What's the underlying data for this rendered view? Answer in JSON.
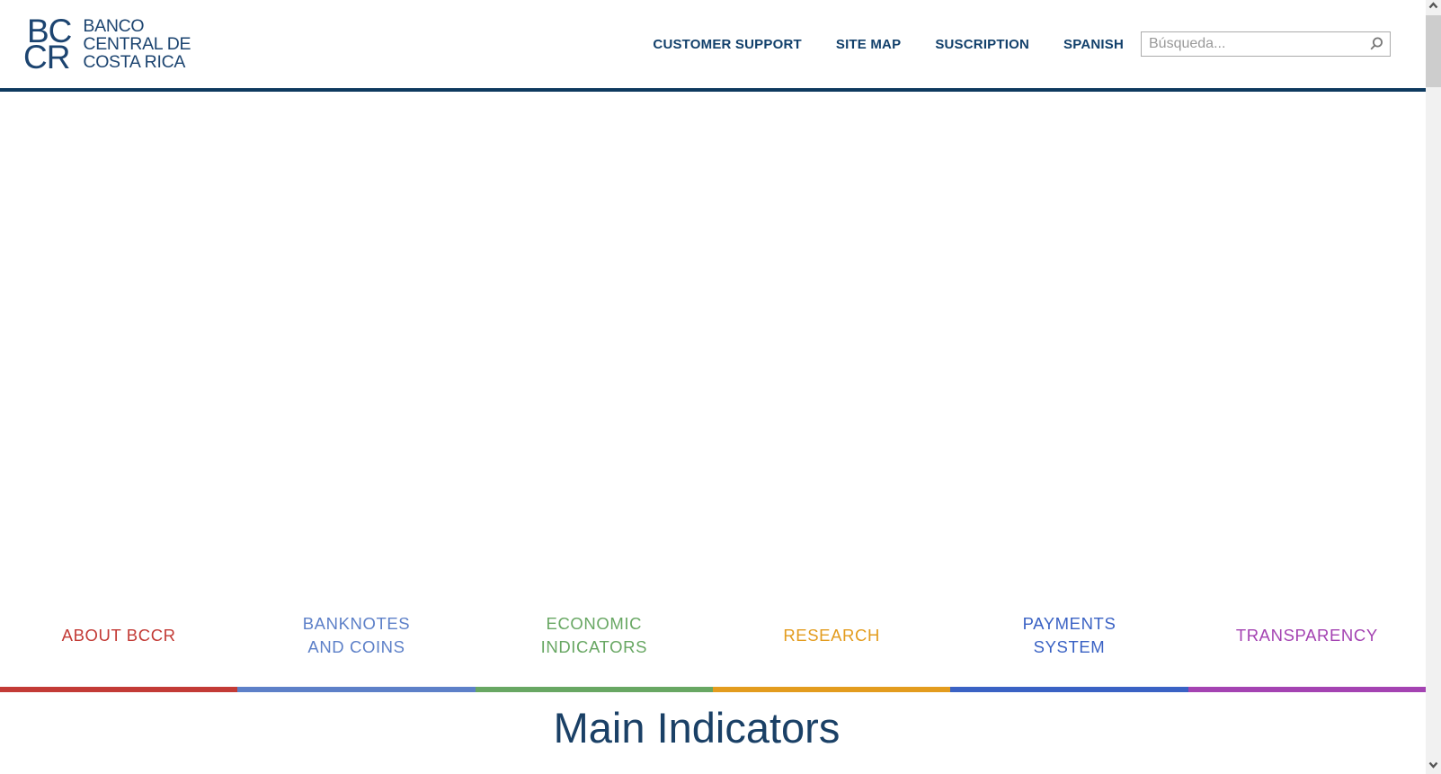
{
  "header": {
    "logo": {
      "mark_top": "BC",
      "mark_bottom": "CR",
      "name_line1": "BANCO",
      "name_line2": "CENTRAL DE",
      "name_line3": "COSTA RICA"
    },
    "nav_items": [
      {
        "label": "CUSTOMER SUPPORT"
      },
      {
        "label": "SITE MAP"
      },
      {
        "label": "SUSCRIPTION"
      },
      {
        "label": "SPANISH"
      }
    ],
    "search": {
      "placeholder": "Búsqueda..."
    }
  },
  "category_nav": {
    "items": [
      {
        "id": "about-bccr",
        "lines": [
          "ABOUT BCCR"
        ],
        "color": "#c33b36"
      },
      {
        "id": "banknotes-and-coins",
        "lines": [
          "BANKNOTES",
          "AND COINS"
        ],
        "color": "#5d80c8"
      },
      {
        "id": "economic-indicators",
        "lines": [
          "ECONOMIC",
          "INDICATORS"
        ],
        "color": "#68a763"
      },
      {
        "id": "research",
        "lines": [
          "RESEARCH"
        ],
        "color": "#e39c1e"
      },
      {
        "id": "payments-system",
        "lines": [
          "PAYMENTS",
          "SYSTEM"
        ],
        "color": "#3a62c4"
      },
      {
        "id": "transparency",
        "lines": [
          "TRANSPARENCY"
        ],
        "color": "#a443b2"
      }
    ]
  },
  "main": {
    "heading": "Main Indicators"
  },
  "theme": {
    "logo_navy": "#1c4470",
    "nav_link_navy": "#12406b",
    "header_rule_navy": "#0e3a5f",
    "heading_navy": "#1a4066",
    "scrollbar_track": "#f1f1f1",
    "scrollbar_thumb": "#cdcdcd"
  },
  "icons": {
    "search": "search-icon",
    "scroll_up": "chevron-up-icon",
    "scroll_down": "chevron-down-icon"
  }
}
